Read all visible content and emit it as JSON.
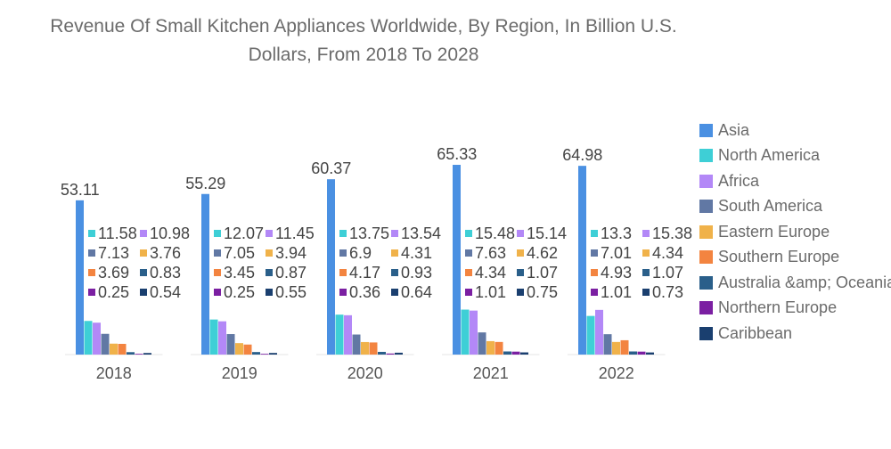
{
  "chart_data": {
    "type": "bar",
    "title": "Revenue Of Small Kitchen Appliances Worldwide, By Region, In Billion U.S. Dollars, From 2018 To 2028",
    "categories": [
      "2018",
      "2019",
      "2020",
      "2021",
      "2022"
    ],
    "xlabel": "",
    "ylabel": "",
    "ylim": [
      0,
      70
    ],
    "grid": false,
    "legend_position": "right",
    "series": [
      {
        "name": "Asia",
        "color": "#4a90e2",
        "values": [
          53.11,
          55.29,
          60.37,
          65.33,
          64.98
        ]
      },
      {
        "name": "North America",
        "color": "#3ecfd6",
        "values": [
          11.58,
          12.07,
          13.75,
          15.48,
          13.3
        ]
      },
      {
        "name": "Africa",
        "color": "#b388f7",
        "values": [
          10.98,
          11.45,
          13.54,
          15.14,
          15.38
        ]
      },
      {
        "name": "South America",
        "color": "#6178a4",
        "values": [
          7.13,
          7.05,
          6.9,
          7.63,
          7.01
        ]
      },
      {
        "name": "Eastern Europe",
        "color": "#f0b24a",
        "values": [
          3.76,
          3.94,
          4.31,
          4.62,
          4.34
        ]
      },
      {
        "name": "Southern Europe",
        "color": "#f38440",
        "values": [
          3.69,
          3.45,
          4.17,
          4.34,
          4.93
        ]
      },
      {
        "name": "Australia &amp; Oceania",
        "color": "#2a5f8a",
        "values": [
          0.83,
          0.87,
          0.93,
          1.07,
          1.07
        ]
      },
      {
        "name": "Northern Europe",
        "color": "#7b1fa2",
        "values": [
          0.25,
          0.25,
          0.36,
          1.01,
          1.01
        ]
      },
      {
        "name": "Caribbean",
        "color": "#1a3f6f",
        "values": [
          0.54,
          0.55,
          0.64,
          0.75,
          0.73
        ]
      }
    ]
  }
}
